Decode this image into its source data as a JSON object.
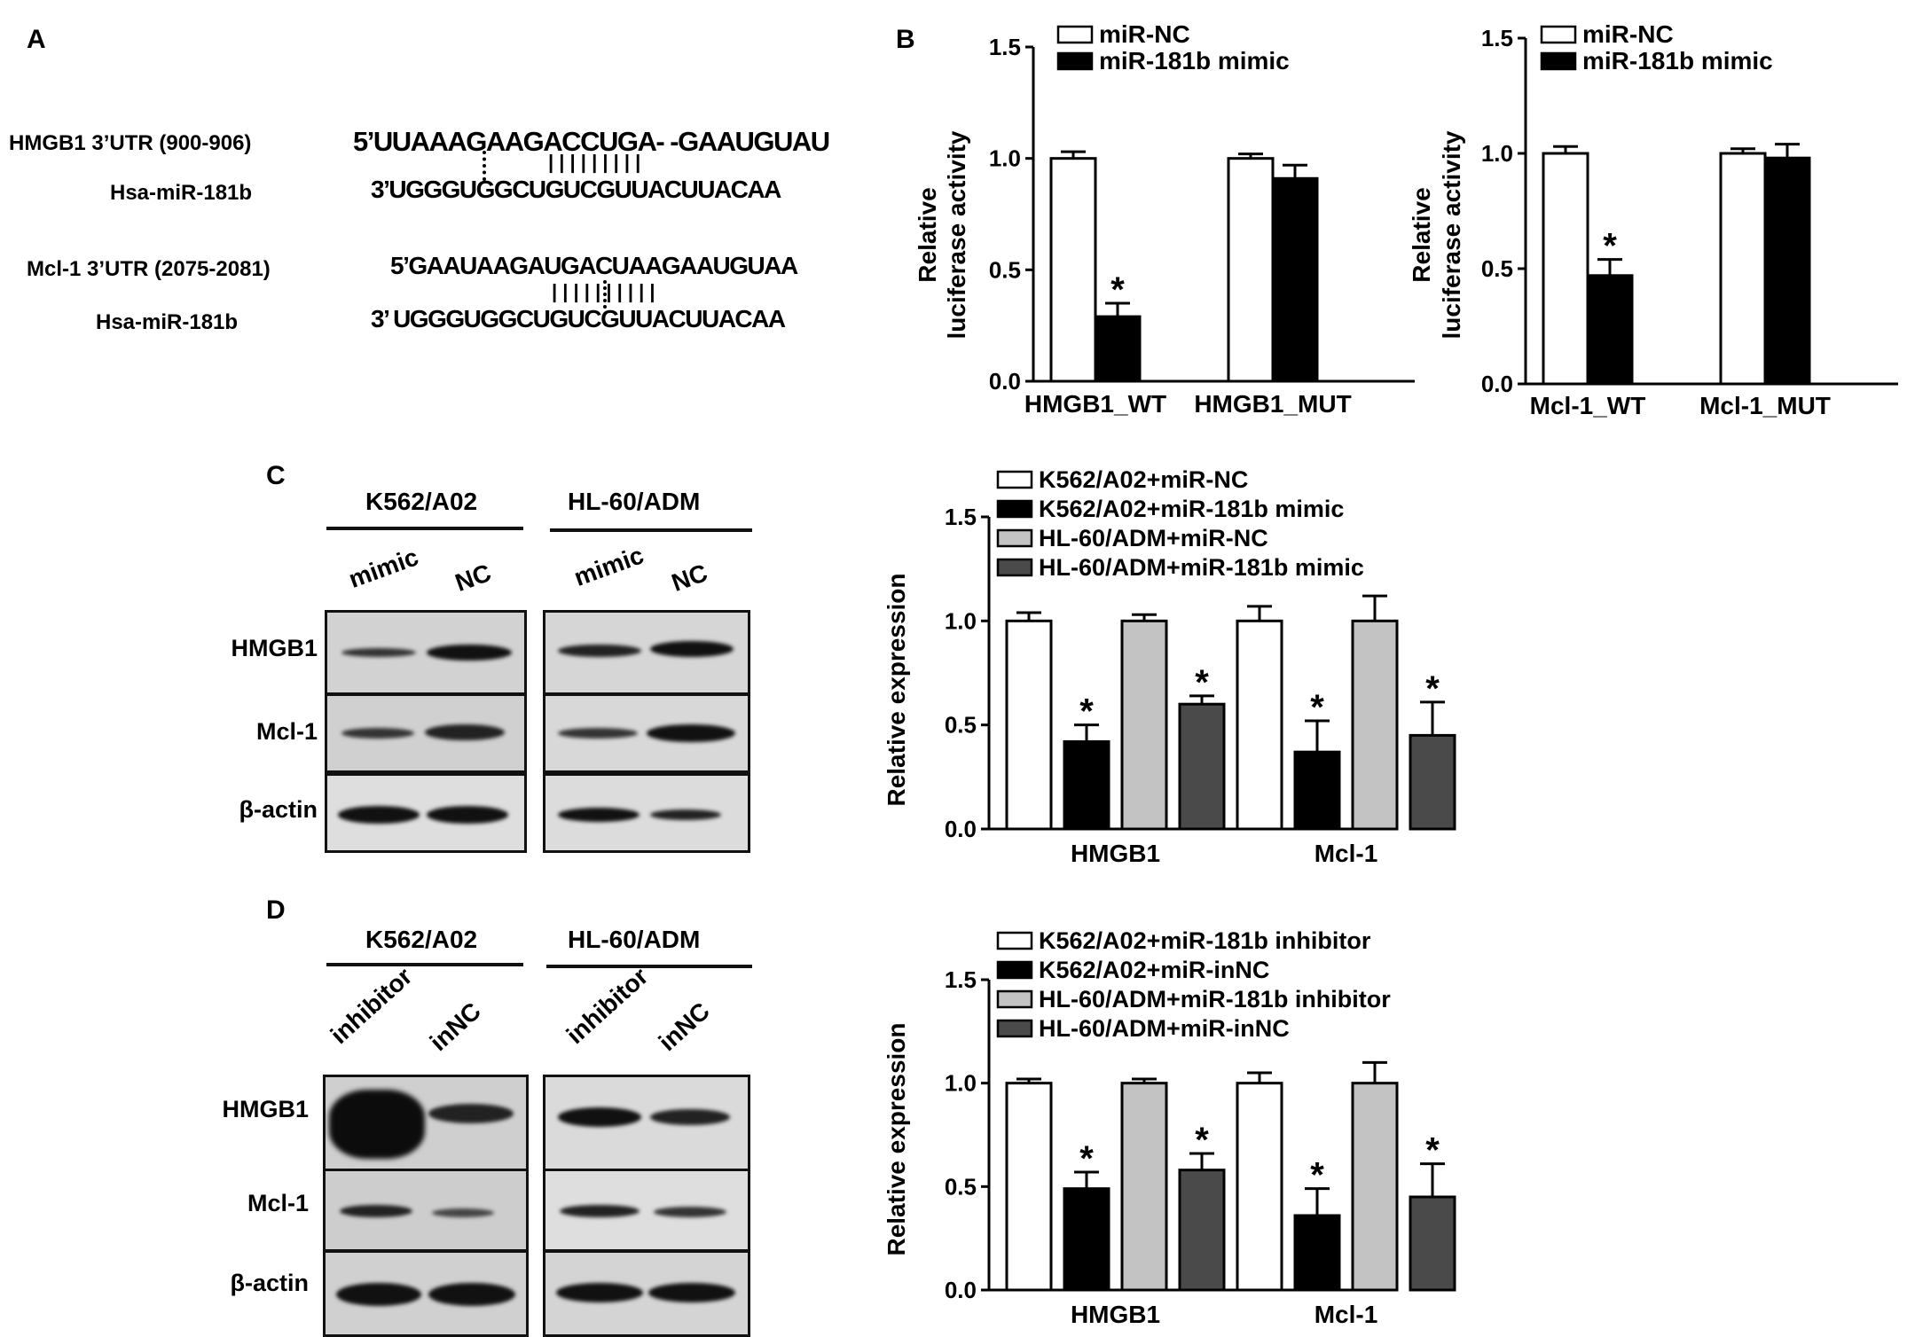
{
  "panels": {
    "A": "A",
    "B": "B",
    "C": "C",
    "D": "D"
  },
  "panel_a": {
    "row1_label": "HMGB1 3’UTR  (900-906)",
    "row1_seq": "5’UUAAAGAAGACCUGA- -GAAUGUAU",
    "row1_pairs": "|  |  |             |        |  |  |  |  |",
    "row2_label": "Hsa-miR-181b",
    "row2_seq": "3’UGGGUGGCUGUCGUUACUUACAA",
    "row3_label": "Mcl-1 3’UTR (2075-2081)",
    "row3_seq": "5’GAAUAAGAUGACUAAGAAUGUAA",
    "row3_pairs": "|  |        |     |      |  |  |  |  |  |",
    "row4_label": "Hsa-miR-181b",
    "row4_seq": "3’ UGGGUGGCUGUCGUUACUUACAA"
  },
  "panel_c": {
    "blots": [
      "K562/A02",
      "HL-60/ADM"
    ],
    "lanes": [
      "mimic",
      "NC",
      "mimic",
      "NC"
    ],
    "rows": [
      "HMGB1",
      "Mcl-1",
      "β-actin"
    ]
  },
  "panel_d": {
    "blots": [
      "K562/A02",
      "HL-60/ADM"
    ],
    "lanes": [
      "inhibitor",
      "inNC",
      "inhibitor",
      "inNC"
    ],
    "rows": [
      "HMGB1",
      "Mcl-1",
      "β-actin"
    ]
  },
  "colors": {
    "white": "#ffffff",
    "black": "#000000",
    "lightgray": "#c3c3c3",
    "darkgray": "#4a4a4a"
  },
  "chart_data": [
    {
      "id": "b1",
      "type": "bar",
      "categories": [
        "HMGB1_WT",
        "HMGB1_MUT"
      ],
      "series": [
        {
          "name": "miR-NC",
          "color": "#ffffff",
          "values": [
            1.0,
            1.0
          ],
          "errors": [
            0.03,
            0.02
          ],
          "sig": [
            "",
            ""
          ]
        },
        {
          "name": "miR-181b mimic",
          "color": "#000000",
          "values": [
            0.29,
            0.91
          ],
          "errors": [
            0.06,
            0.06
          ],
          "sig": [
            "*",
            ""
          ]
        }
      ],
      "ylabel": "Relative luciferase activity",
      "ylabel_lines": [
        "Relative",
        "luciferase activity"
      ],
      "ylim": [
        0,
        1.5
      ],
      "yticks": [
        "0.0",
        "0.5",
        "1.0",
        "1.5"
      ],
      "ytick_values": [
        0,
        0.5,
        1.0,
        1.5
      ],
      "legend": "top-left"
    },
    {
      "id": "b2",
      "type": "bar",
      "categories": [
        "Mcl-1_WT",
        "Mcl-1_MUT"
      ],
      "series": [
        {
          "name": "miR-NC",
          "color": "#ffffff",
          "values": [
            1.0,
            1.0
          ],
          "errors": [
            0.03,
            0.02
          ],
          "sig": [
            "",
            ""
          ]
        },
        {
          "name": "miR-181b mimic",
          "color": "#000000",
          "values": [
            0.47,
            0.98
          ],
          "errors": [
            0.07,
            0.06
          ],
          "sig": [
            "*",
            ""
          ]
        }
      ],
      "ylabel": "Relative luciferase activity",
      "ylabel_lines": [
        "Relative",
        "luciferase activity"
      ],
      "ylim": [
        0,
        1.5
      ],
      "yticks": [
        "0.0",
        "0.5",
        "1.0",
        "1.5"
      ],
      "ytick_values": [
        0,
        0.5,
        1.0,
        1.5
      ],
      "legend": "top-left"
    },
    {
      "id": "c",
      "type": "bar",
      "categories": [
        "HMGB1",
        "Mcl-1"
      ],
      "series": [
        {
          "name": "K562/A02+miR-NC",
          "color": "#ffffff",
          "values": [
            1.0,
            1.0
          ],
          "errors": [
            0.04,
            0.07
          ],
          "sig": [
            "",
            ""
          ]
        },
        {
          "name": "K562/A02+miR-181b mimic",
          "color": "#000000",
          "values": [
            0.42,
            0.37
          ],
          "errors": [
            0.08,
            0.15
          ],
          "sig": [
            "*",
            "*"
          ]
        },
        {
          "name": "HL-60/ADM+miR-NC",
          "color": "#c3c3c3",
          "values": [
            1.0,
            1.0
          ],
          "errors": [
            0.03,
            0.12
          ],
          "sig": [
            "",
            ""
          ]
        },
        {
          "name": "HL-60/ADM+miR-181b mimic",
          "color": "#4a4a4a",
          "values": [
            0.6,
            0.45
          ],
          "errors": [
            0.04,
            0.16
          ],
          "sig": [
            "*",
            "*"
          ]
        }
      ],
      "ylabel": "Relative expression",
      "ylabel_lines": [
        "Relative expression"
      ],
      "ylim": [
        0,
        1.5
      ],
      "yticks": [
        "0.0",
        "0.5",
        "1.0",
        "1.5"
      ],
      "ytick_values": [
        0,
        0.5,
        1.0,
        1.5
      ],
      "legend": "top"
    },
    {
      "id": "d",
      "type": "bar",
      "categories": [
        "HMGB1",
        "Mcl-1"
      ],
      "series": [
        {
          "name": "K562/A02+miR-181b inhibitor",
          "color": "#ffffff",
          "values": [
            1.0,
            1.0
          ],
          "errors": [
            0.02,
            0.05
          ],
          "sig": [
            "",
            ""
          ]
        },
        {
          "name": "K562/A02+miR-inNC",
          "color": "#000000",
          "values": [
            0.49,
            0.36
          ],
          "errors": [
            0.08,
            0.13
          ],
          "sig": [
            "*",
            "*"
          ]
        },
        {
          "name": "HL-60/ADM+miR-181b inhibitor",
          "color": "#c3c3c3",
          "values": [
            1.0,
            1.0
          ],
          "errors": [
            0.02,
            0.1
          ],
          "sig": [
            "",
            ""
          ]
        },
        {
          "name": "HL-60/ADM+miR-inNC",
          "color": "#4a4a4a",
          "values": [
            0.58,
            0.45
          ],
          "errors": [
            0.08,
            0.16
          ],
          "sig": [
            "*",
            "*"
          ]
        }
      ],
      "ylabel": "Relative expression",
      "ylabel_lines": [
        "Relative expression"
      ],
      "ylim": [
        0,
        1.5
      ],
      "yticks": [
        "0.0",
        "0.5",
        "1.0",
        "1.5"
      ],
      "ytick_values": [
        0,
        0.5,
        1.0,
        1.5
      ],
      "legend": "top"
    }
  ]
}
